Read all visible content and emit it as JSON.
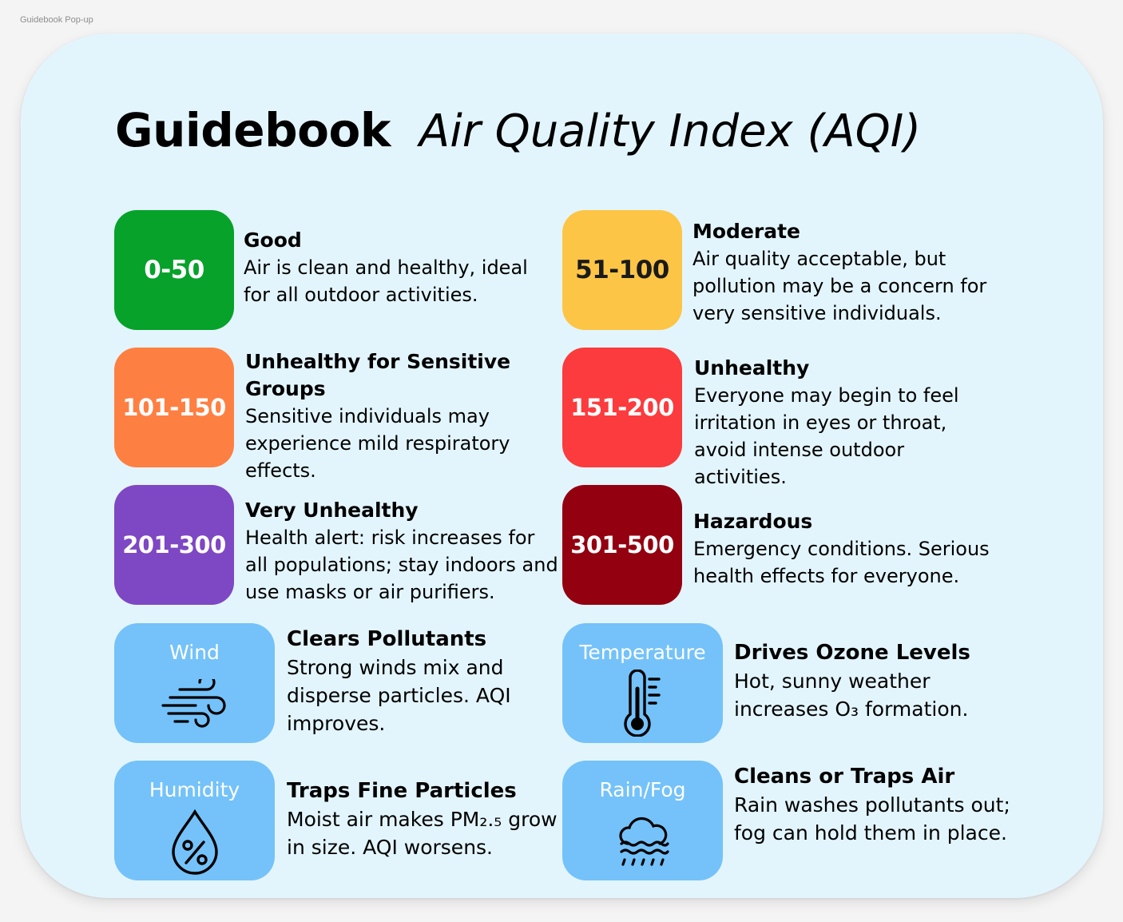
{
  "frame_label": "Guidebook Pop-up",
  "title": {
    "main": "Guidebook",
    "sub": "Air Quality Index (AQI)"
  },
  "levels": [
    {
      "range": "0-50",
      "name": "Good",
      "desc": "Air is clean and healthy, ideal for all outdoor activities.",
      "color": "#06a22a",
      "text_color": "#ffffff"
    },
    {
      "range": "51-100",
      "name": "Moderate",
      "desc": "Air quality acceptable, but pollution may be a concern for very sensitive individuals.",
      "color": "#fdc546",
      "text_color": "#1a1a1a"
    },
    {
      "range": "101-150",
      "name": "Unhealthy for Sensitive Groups",
      "desc": "Sensitive individuals may experience mild respiratory effects.",
      "color": "#fe7f42",
      "text_color": "#ffffff"
    },
    {
      "range": "151-200",
      "name": "Unhealthy",
      "desc": "Everyone may begin to feel irritation in eyes or throat, avoid intense outdoor activities.",
      "color": "#fb3b3d",
      "text_color": "#ffffff"
    },
    {
      "range": "201-300",
      "name": "Very Unhealthy",
      "desc": "Health alert: risk increases for all populations; stay indoors and use masks or air purifiers.",
      "color": "#7e47c3",
      "text_color": "#ffffff"
    },
    {
      "range": "301-500",
      "name": "Hazardous",
      "desc": "Emergency conditions. Serious health effects for everyone.",
      "color": "#930010",
      "text_color": "#ffffff"
    }
  ],
  "factors": [
    {
      "label": "Wind",
      "icon": "wind-icon",
      "heading": "Clears Pollutants",
      "desc": "Strong winds mix and disperse particles. AQI improves."
    },
    {
      "label": "Temperature",
      "icon": "thermometer-icon",
      "heading": "Drives Ozone Levels",
      "desc": "Hot, sunny weather increases O₃ formation."
    },
    {
      "label": "Humidity",
      "icon": "humidity-drop-icon",
      "heading": "Traps Fine Particles",
      "desc": "Moist air makes PM₂.₅ grow in size. AQI worsens."
    },
    {
      "label": "Rain/Fog",
      "icon": "rain-fog-cloud-icon",
      "heading": "Cleans or Traps Air",
      "desc": "Rain washes pollutants out; fog can hold them in place."
    }
  ],
  "colors": {
    "card_bg": "#e3f5fc",
    "factor_bg": "#74c2f9"
  }
}
